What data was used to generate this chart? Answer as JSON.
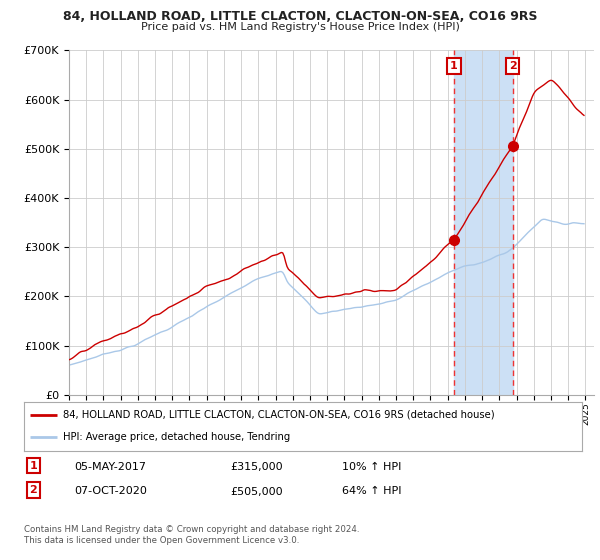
{
  "title_line1": "84, HOLLAND ROAD, LITTLE CLACTON, CLACTON-ON-SEA, CO16 9RS",
  "title_line2": "Price paid vs. HM Land Registry's House Price Index (HPI)",
  "legend_line1": "84, HOLLAND ROAD, LITTLE CLACTON, CLACTON-ON-SEA, CO16 9RS (detached house)",
  "legend_line2": "HPI: Average price, detached house, Tendring",
  "annotation1_label": "1",
  "annotation1_date": "05-MAY-2017",
  "annotation1_price": "£315,000",
  "annotation1_hpi": "10% ↑ HPI",
  "annotation2_label": "2",
  "annotation2_date": "07-OCT-2020",
  "annotation2_price": "£505,000",
  "annotation2_hpi": "64% ↑ HPI",
  "footer": "Contains HM Land Registry data © Crown copyright and database right 2024.\nThis data is licensed under the Open Government Licence v3.0.",
  "purchase1_year": 2017.37,
  "purchase1_value": 315000,
  "purchase2_year": 2020.77,
  "purchase2_value": 505000,
  "ylim": [
    0,
    700000
  ],
  "yticks": [
    0,
    100000,
    200000,
    300000,
    400000,
    500000,
    600000,
    700000
  ],
  "ytick_labels": [
    "£0",
    "£100K",
    "£200K",
    "£300K",
    "£400K",
    "£500K",
    "£600K",
    "£700K"
  ],
  "hpi_color": "#aac8e8",
  "property_color": "#cc0000",
  "marker_color": "#cc0000",
  "dashed_line_color": "#ee3333",
  "shade_color": "#cce0f5",
  "bg_color": "#ffffff",
  "grid_color": "#cccccc",
  "title_color": "#222222",
  "xstart": 1995,
  "xend": 2025
}
